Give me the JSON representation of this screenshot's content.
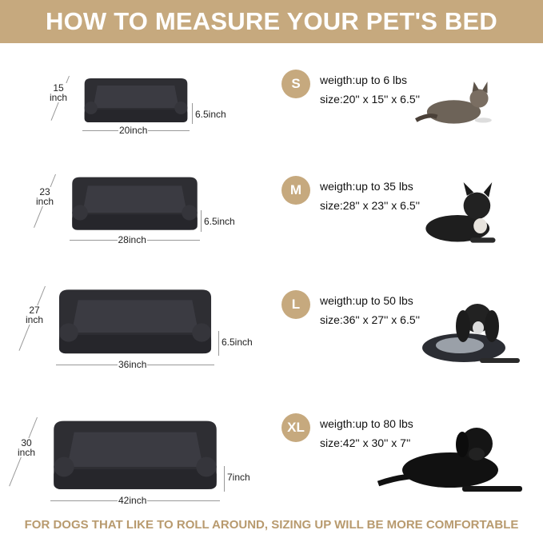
{
  "header": {
    "title": "HOW TO MEASURE YOUR PET'S BED"
  },
  "sizes": [
    {
      "badge": "S",
      "weight": "weigth:up to 6 lbs",
      "size": "size:20'' x 15'' x 6.5''",
      "width_label": "20inch",
      "depth_num": "15",
      "depth_unit": "inch",
      "height_label": "6.5inch",
      "pet": "cat"
    },
    {
      "badge": "M",
      "weight": "weigth:up to 35 lbs",
      "size": "size:28'' x 23'' x 6.5''",
      "width_label": "28inch",
      "depth_num": "23",
      "depth_unit": "inch",
      "height_label": "6.5inch",
      "pet": "french-bulldog"
    },
    {
      "badge": "L",
      "weight": "weigth:up to 50 lbs",
      "size": "size:36'' x 27'' x 6.5''",
      "width_label": "36inch",
      "depth_num": "27",
      "depth_unit": "inch",
      "height_label": "6.5inch",
      "pet": "spaniel"
    },
    {
      "badge": "XL",
      "weight": "weigth:up to 80 lbs",
      "size": "size:42'' x 30'' x 7''",
      "width_label": "42inch",
      "depth_num": "30",
      "depth_unit": "inch",
      "height_label": "7inch",
      "pet": "labrador"
    }
  ],
  "footer": {
    "text": "FOR DOGS THAT LIKE TO ROLL AROUND, SIZING UP WILL BE MORE COMFORTABLE"
  },
  "colors": {
    "accent": "#c6a97e",
    "footer_text": "#b89a6e",
    "bed": "#2e2e33"
  }
}
